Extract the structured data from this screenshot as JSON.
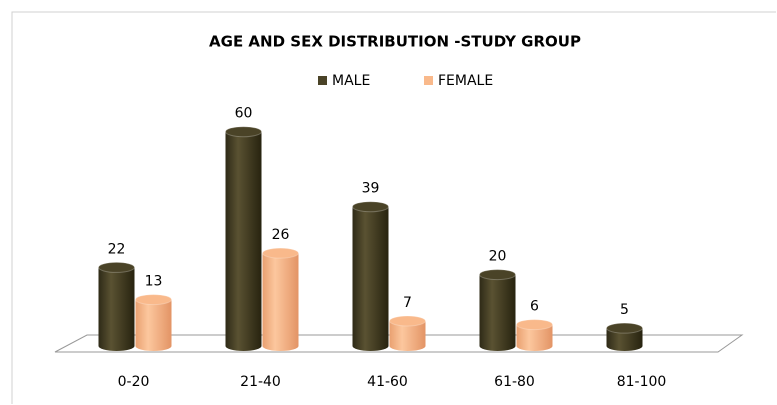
{
  "chart_data": {
    "type": "bar3d",
    "title": "AGE AND SEX DISTRIBUTION -STUDY GROUP",
    "categories": [
      "0-20",
      "21-40",
      "41-60",
      "61-80",
      "81-100"
    ],
    "series": [
      {
        "name": "MALE",
        "color": "#4a4327",
        "values": [
          22,
          60,
          39,
          20,
          5
        ]
      },
      {
        "name": "FEMALE",
        "color": "#f9b98b",
        "values": [
          13,
          26,
          7,
          6,
          null
        ]
      }
    ],
    "ylim": [
      0,
      70
    ],
    "legend": "top"
  }
}
